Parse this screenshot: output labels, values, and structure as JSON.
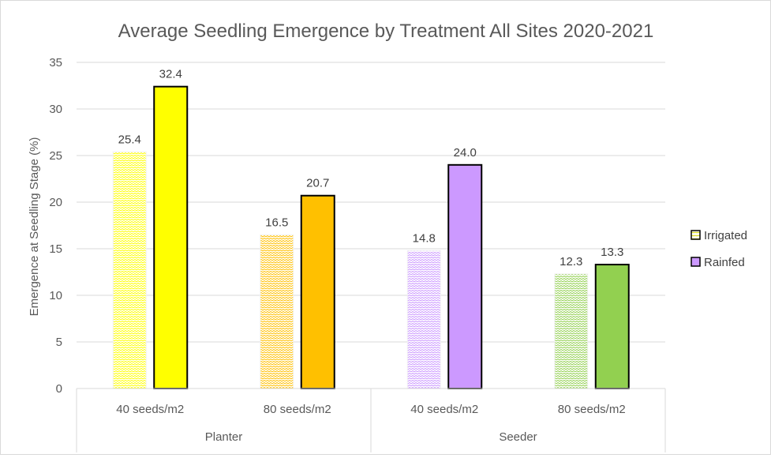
{
  "chart_data": {
    "type": "bar",
    "title": "Average Seedling Emergence by Treatment All Sites 2020-2021",
    "ylabel": "Emergence  at Seedling Stage (%)",
    "xlabel": "",
    "ylim": [
      0,
      35
    ],
    "yticks": [
      0,
      5,
      10,
      15,
      20,
      25,
      30,
      35
    ],
    "grid": true,
    "legend_position": "right",
    "groups": [
      {
        "label": "Planter",
        "categories": [
          "40 seeds/m2",
          "80 seeds/m2"
        ]
      },
      {
        "label": "Seeder",
        "categories": [
          "40 seeds/m2",
          "80 seeds/m2"
        ]
      }
    ],
    "categories": [
      "40 seeds/m2",
      "80 seeds/m2",
      "40 seeds/m2",
      "80 seeds/m2"
    ],
    "series": [
      {
        "name": "Irrigated",
        "values": [
          25.4,
          16.5,
          14.8,
          12.3
        ],
        "value_labels": [
          "25.4",
          "16.5",
          "14.8",
          "12.3"
        ],
        "pattern": "wave"
      },
      {
        "name": "Rainfed",
        "values": [
          32.4,
          20.7,
          24.0,
          13.3
        ],
        "value_labels": [
          "32.4",
          "20.7",
          "24.0",
          "13.3"
        ],
        "pattern": "solid"
      }
    ],
    "category_colors": [
      "#ffff00",
      "#ffc000",
      "#cc99ff",
      "#92d050"
    ],
    "legend_colors": {
      "Irrigated": "#ffffcc",
      "Rainfed": "#cc99ff"
    }
  }
}
